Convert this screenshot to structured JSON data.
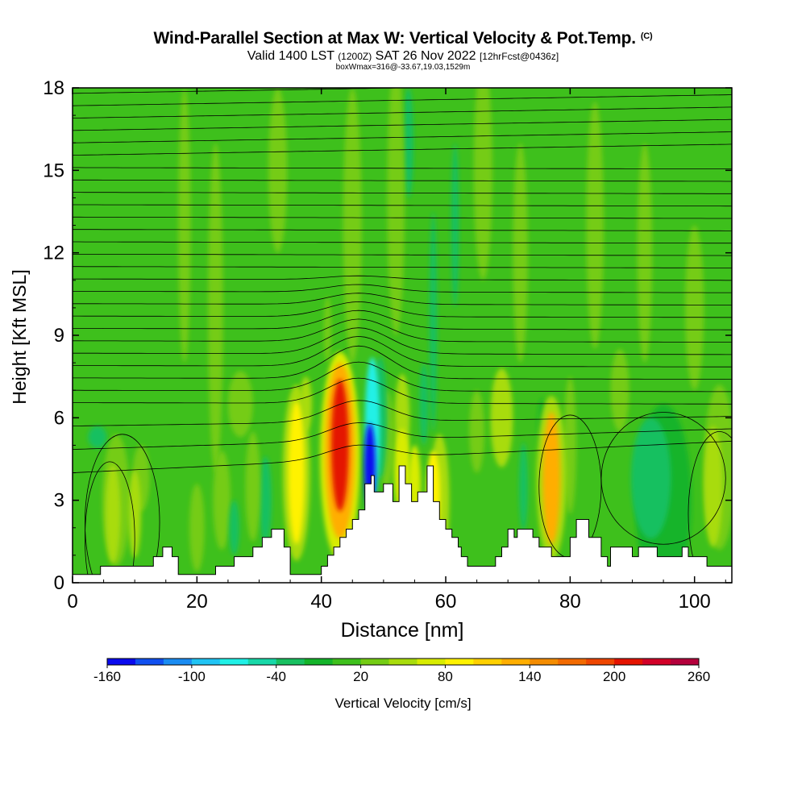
{
  "title": "Wind-Parallel Section at Max W: Vertical Velocity & Pot.Temp.",
  "title_mark": "(C)",
  "subtitle_main": "Valid 1400 LST",
  "subtitle_z": "(1200Z)",
  "subtitle_date": "SAT 26 Nov 2022",
  "subtitle_fcst": "[12hrFcst@0436z]",
  "box_line": "boxWmax=316@-33.67,19.03,1529m",
  "chart_data": {
    "type": "heatmap",
    "xlabel": "Distance [nm]",
    "ylabel": "Height [Kft MSL]",
    "xlim": [
      0,
      106
    ],
    "ylim": [
      0,
      18
    ],
    "x_ticks": [
      "0",
      "20",
      "40",
      "60",
      "80",
      "100"
    ],
    "y_ticks": [
      "0",
      "3",
      "6",
      "9",
      "12",
      "15",
      "18"
    ],
    "colorbar": {
      "label": "Vertical Velocity [cm/s]",
      "levels": [
        -160,
        -140,
        -120,
        -100,
        -80,
        -60,
        -40,
        -20,
        0,
        20,
        40,
        60,
        80,
        100,
        120,
        140,
        160,
        180,
        200,
        220,
        240,
        260
      ],
      "tick_labels": [
        "-160",
        "-100",
        "-40",
        "20",
        "80",
        "140",
        "200",
        "260"
      ],
      "colors": [
        "#0a0aee",
        "#1050f0",
        "#1a8cf2",
        "#20c4f4",
        "#20f0e6",
        "#18d8a8",
        "#18c060",
        "#14b42a",
        "#3ec01c",
        "#74cc14",
        "#a8dc0c",
        "#d8ec00",
        "#fff200",
        "#ffd000",
        "#ffae00",
        "#f48c00",
        "#f26a00",
        "#ee4600",
        "#e41400",
        "#d20028",
        "#b4003c"
      ]
    },
    "terrain_nm_kft": [
      [
        0,
        0.3
      ],
      [
        4.5,
        0.3
      ],
      [
        4.5,
        0.6
      ],
      [
        13,
        0.6
      ],
      [
        13,
        0.95
      ],
      [
        14.5,
        0.95
      ],
      [
        14.5,
        1.3
      ],
      [
        16,
        1.3
      ],
      [
        16,
        0.95
      ],
      [
        17,
        0.95
      ],
      [
        17,
        0.3
      ],
      [
        23,
        0.3
      ],
      [
        23,
        0.6
      ],
      [
        26,
        0.6
      ],
      [
        26,
        0.95
      ],
      [
        29,
        0.95
      ],
      [
        29,
        1.3
      ],
      [
        30.5,
        1.3
      ],
      [
        30.5,
        1.65
      ],
      [
        32,
        1.65
      ],
      [
        32,
        1.95
      ],
      [
        34,
        1.95
      ],
      [
        34,
        1.3
      ],
      [
        35,
        1.3
      ],
      [
        35,
        0.3
      ],
      [
        40,
        0.3
      ],
      [
        40,
        0.6
      ],
      [
        41,
        0.6
      ],
      [
        41,
        1.0
      ],
      [
        42,
        1.0
      ],
      [
        42,
        1.3
      ],
      [
        43,
        1.3
      ],
      [
        43,
        1.65
      ],
      [
        44,
        1.65
      ],
      [
        44,
        1.95
      ],
      [
        45,
        1.95
      ],
      [
        45,
        2.3
      ],
      [
        46,
        2.3
      ],
      [
        46,
        2.65
      ],
      [
        47,
        2.65
      ],
      [
        47,
        3.6
      ],
      [
        48,
        3.6
      ],
      [
        48,
        3.9
      ],
      [
        48.5,
        3.9
      ],
      [
        48.5,
        3.3
      ],
      [
        50,
        3.3
      ],
      [
        50,
        3.6
      ],
      [
        51.5,
        3.6
      ],
      [
        51.5,
        2.95
      ],
      [
        52.5,
        2.95
      ],
      [
        52.5,
        4.25
      ],
      [
        53.5,
        4.25
      ],
      [
        53.5,
        3.6
      ],
      [
        54.5,
        3.6
      ],
      [
        54.5,
        2.95
      ],
      [
        55.5,
        2.95
      ],
      [
        55.5,
        3.3
      ],
      [
        57,
        3.3
      ],
      [
        57,
        4.25
      ],
      [
        58,
        4.25
      ],
      [
        58,
        2.95
      ],
      [
        59,
        2.95
      ],
      [
        59,
        2.3
      ],
      [
        60,
        2.3
      ],
      [
        60,
        1.95
      ],
      [
        61,
        1.95
      ],
      [
        61,
        1.65
      ],
      [
        62,
        1.65
      ],
      [
        62,
        1.3
      ],
      [
        62.5,
        1.3
      ],
      [
        62.5,
        0.95
      ],
      [
        63.5,
        0.95
      ],
      [
        63.5,
        0.6
      ],
      [
        68,
        0.6
      ],
      [
        68,
        0.95
      ],
      [
        69,
        0.95
      ],
      [
        69,
        1.3
      ],
      [
        70,
        1.3
      ],
      [
        70,
        1.95
      ],
      [
        71,
        1.95
      ],
      [
        71,
        1.65
      ],
      [
        71.5,
        1.65
      ],
      [
        71.5,
        1.95
      ],
      [
        74,
        1.95
      ],
      [
        74,
        1.65
      ],
      [
        75,
        1.65
      ],
      [
        75,
        1.3
      ],
      [
        77,
        1.3
      ],
      [
        77,
        0.95
      ],
      [
        80,
        0.95
      ],
      [
        80,
        1.65
      ],
      [
        81,
        1.65
      ],
      [
        81,
        2.3
      ],
      [
        83,
        2.3
      ],
      [
        83,
        1.65
      ],
      [
        85,
        1.65
      ],
      [
        85,
        0.95
      ],
      [
        86,
        0.95
      ],
      [
        86,
        0.6
      ],
      [
        86.5,
        0.6
      ],
      [
        86.5,
        1.3
      ],
      [
        90,
        1.3
      ],
      [
        90,
        0.95
      ],
      [
        91,
        0.95
      ],
      [
        91,
        1.3
      ],
      [
        94,
        1.3
      ],
      [
        94,
        0.95
      ],
      [
        98,
        0.95
      ],
      [
        98,
        1.3
      ],
      [
        99,
        1.3
      ],
      [
        99,
        0.95
      ],
      [
        102,
        0.95
      ],
      [
        102,
        0.6
      ],
      [
        106,
        0.6
      ]
    ],
    "potential_temperature_contours": "isentropes plotted as black lines with inline labels (values not legible)"
  }
}
